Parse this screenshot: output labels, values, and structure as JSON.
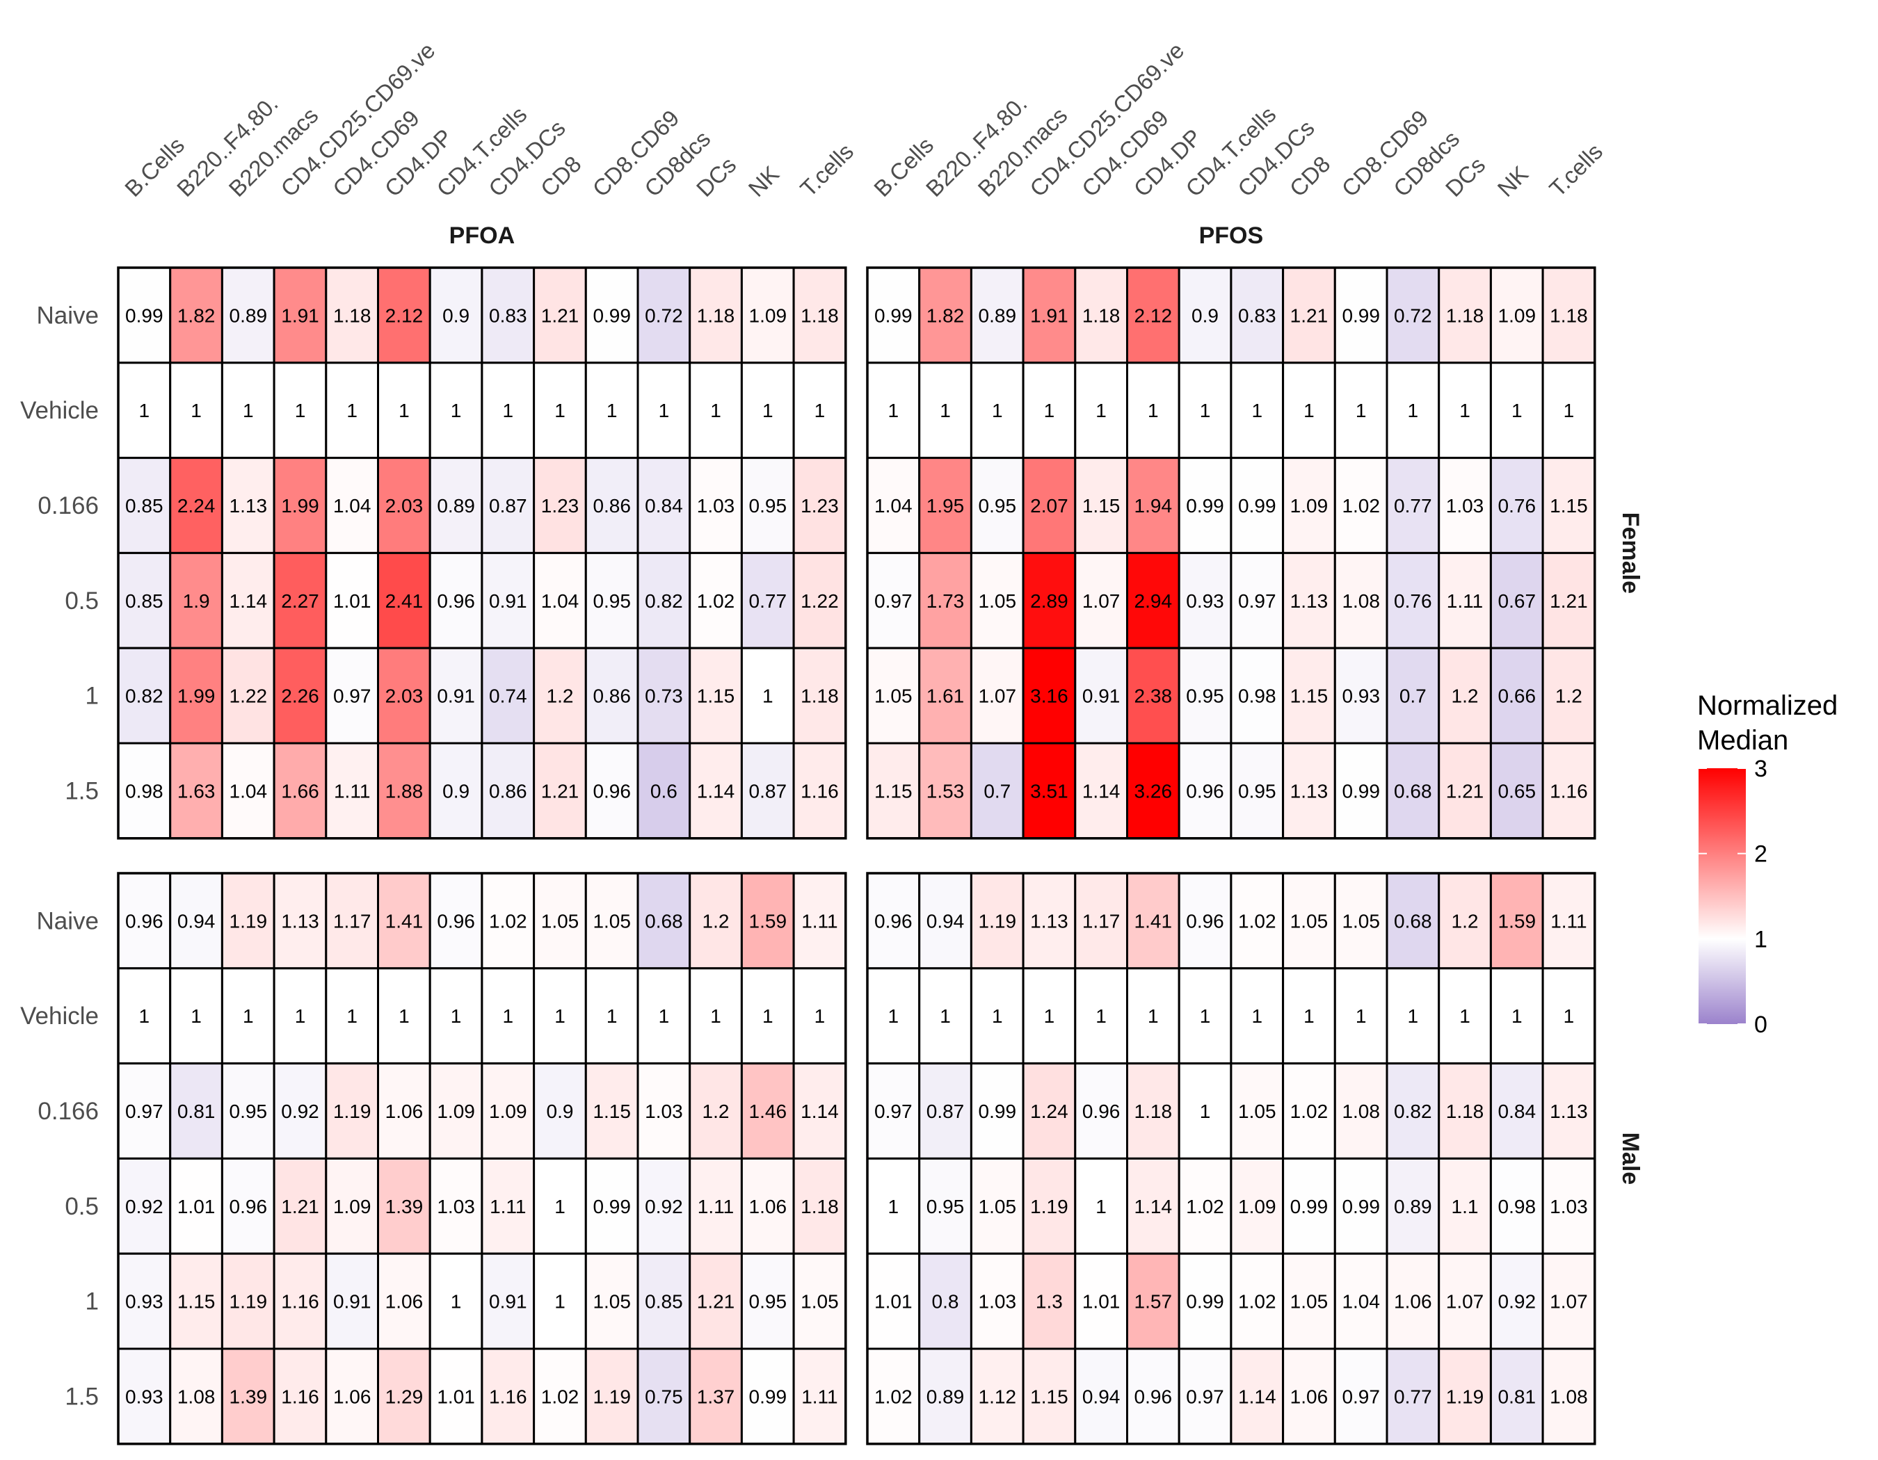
{
  "chart_data": {
    "type": "heatmap",
    "title": "",
    "columns": [
      "B.Cells",
      "B220..F4.80.",
      "B220.macs",
      "CD4.CD25.CD69.ve",
      "CD4.CD69",
      "CD4.DP",
      "CD4.T.cells",
      "CD4.DCs",
      "CD8",
      "CD8.CD69",
      "CD8dcs",
      "DCs",
      "NK",
      "T.cells"
    ],
    "rows": [
      "Naive",
      "Vehicle",
      "0.166",
      "0.5",
      "1",
      "1.5"
    ],
    "facet_columns": [
      "PFOA",
      "PFOS"
    ],
    "facet_rows": [
      "Female",
      "Male"
    ],
    "legend": {
      "title_lines": [
        "Normalized",
        "Median"
      ],
      "ticks": [
        "0",
        "1",
        "2",
        "3"
      ],
      "range": [
        0,
        3
      ],
      "low_color": "#9b82cc",
      "mid_color": "#ffffff",
      "high_color": "#ff0000",
      "placement": "right"
    },
    "panels": [
      {
        "chem": "PFOA",
        "sex": "Female",
        "values": [
          [
            "0.99",
            "1.82",
            "0.89",
            "1.91",
            "1.18",
            "2.12",
            "0.9",
            "0.83",
            "1.21",
            "0.99",
            "0.72",
            "1.18",
            "1.09",
            "1.18"
          ],
          [
            "1",
            "1",
            "1",
            "1",
            "1",
            "1",
            "1",
            "1",
            "1",
            "1",
            "1",
            "1",
            "1",
            "1"
          ],
          [
            "0.85",
            "2.24",
            "1.13",
            "1.99",
            "1.04",
            "2.03",
            "0.89",
            "0.87",
            "1.23",
            "0.86",
            "0.84",
            "1.03",
            "0.95",
            "1.23"
          ],
          [
            "0.85",
            "1.9",
            "1.14",
            "2.27",
            "1.01",
            "2.41",
            "0.96",
            "0.91",
            "1.04",
            "0.95",
            "0.82",
            "1.02",
            "0.77",
            "1.22"
          ],
          [
            "0.82",
            "1.99",
            "1.22",
            "2.26",
            "0.97",
            "2.03",
            "0.91",
            "0.74",
            "1.2",
            "0.86",
            "0.73",
            "1.15",
            "1",
            "1.18"
          ],
          [
            "0.98",
            "1.63",
            "1.04",
            "1.66",
            "1.11",
            "1.88",
            "0.9",
            "0.86",
            "1.21",
            "0.96",
            "0.6",
            "1.14",
            "0.87",
            "1.16"
          ]
        ]
      },
      {
        "chem": "PFOS",
        "sex": "Female",
        "values": [
          [
            "0.99",
            "1.82",
            "0.89",
            "1.91",
            "1.18",
            "2.12",
            "0.9",
            "0.83",
            "1.21",
            "0.99",
            "0.72",
            "1.18",
            "1.09",
            "1.18"
          ],
          [
            "1",
            "1",
            "1",
            "1",
            "1",
            "1",
            "1",
            "1",
            "1",
            "1",
            "1",
            "1",
            "1",
            "1"
          ],
          [
            "1.04",
            "1.95",
            "0.95",
            "2.07",
            "1.15",
            "1.94",
            "0.99",
            "0.99",
            "1.09",
            "1.02",
            "0.77",
            "1.03",
            "0.76",
            "1.15"
          ],
          [
            "0.97",
            "1.73",
            "1.05",
            "2.89",
            "1.07",
            "2.94",
            "0.93",
            "0.97",
            "1.13",
            "1.08",
            "0.76",
            "1.11",
            "0.67",
            "1.21"
          ],
          [
            "1.05",
            "1.61",
            "1.07",
            "3.16",
            "0.91",
            "2.38",
            "0.95",
            "0.98",
            "1.15",
            "0.93",
            "0.7",
            "1.2",
            "0.66",
            "1.2"
          ],
          [
            "1.15",
            "1.53",
            "0.7",
            "3.51",
            "1.14",
            "3.26",
            "0.96",
            "0.95",
            "1.13",
            "0.99",
            "0.68",
            "1.21",
            "0.65",
            "1.16"
          ]
        ]
      },
      {
        "chem": "PFOA",
        "sex": "Male",
        "values": [
          [
            "0.96",
            "0.94",
            "1.19",
            "1.13",
            "1.17",
            "1.41",
            "0.96",
            "1.02",
            "1.05",
            "1.05",
            "0.68",
            "1.2",
            "1.59",
            "1.11"
          ],
          [
            "1",
            "1",
            "1",
            "1",
            "1",
            "1",
            "1",
            "1",
            "1",
            "1",
            "1",
            "1",
            "1",
            "1"
          ],
          [
            "0.97",
            "0.81",
            "0.95",
            "0.92",
            "1.19",
            "1.06",
            "1.09",
            "1.09",
            "0.9",
            "1.15",
            "1.03",
            "1.2",
            "1.46",
            "1.14"
          ],
          [
            "0.92",
            "1.01",
            "0.96",
            "1.21",
            "1.09",
            "1.39",
            "1.03",
            "1.11",
            "1",
            "0.99",
            "0.92",
            "1.11",
            "1.06",
            "1.18"
          ],
          [
            "0.93",
            "1.15",
            "1.19",
            "1.16",
            "0.91",
            "1.06",
            "1",
            "0.91",
            "1",
            "1.05",
            "0.85",
            "1.21",
            "0.95",
            "1.05"
          ],
          [
            "0.93",
            "1.08",
            "1.39",
            "1.16",
            "1.06",
            "1.29",
            "1.01",
            "1.16",
            "1.02",
            "1.19",
            "0.75",
            "1.37",
            "0.99",
            "1.11"
          ]
        ]
      },
      {
        "chem": "PFOS",
        "sex": "Male",
        "values": [
          [
            "0.96",
            "0.94",
            "1.19",
            "1.13",
            "1.17",
            "1.41",
            "0.96",
            "1.02",
            "1.05",
            "1.05",
            "0.68",
            "1.2",
            "1.59",
            "1.11"
          ],
          [
            "1",
            "1",
            "1",
            "1",
            "1",
            "1",
            "1",
            "1",
            "1",
            "1",
            "1",
            "1",
            "1",
            "1"
          ],
          [
            "0.97",
            "0.87",
            "0.99",
            "1.24",
            "0.96",
            "1.18",
            "1",
            "1.05",
            "1.02",
            "1.08",
            "0.82",
            "1.18",
            "0.84",
            "1.13"
          ],
          [
            "1",
            "0.95",
            "1.05",
            "1.19",
            "1",
            "1.14",
            "1.02",
            "1.09",
            "0.99",
            "0.99",
            "0.89",
            "1.1",
            "0.98",
            "1.03"
          ],
          [
            "1.01",
            "0.8",
            "1.03",
            "1.3",
            "1.01",
            "1.57",
            "0.99",
            "1.02",
            "1.05",
            "1.04",
            "1.06",
            "1.07",
            "0.92",
            "1.07"
          ],
          [
            "1.02",
            "0.89",
            "1.12",
            "1.15",
            "0.94",
            "0.96",
            "0.97",
            "1.14",
            "1.06",
            "0.97",
            "0.77",
            "1.19",
            "0.81",
            "1.08"
          ]
        ]
      }
    ]
  }
}
